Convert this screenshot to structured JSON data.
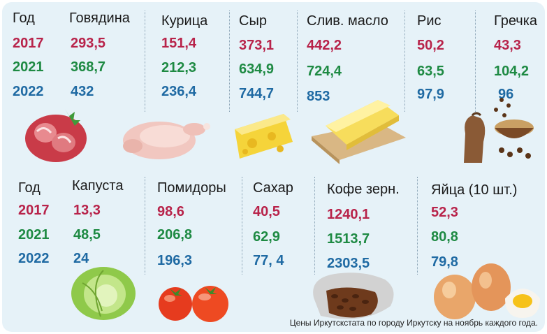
{
  "top": {
    "year_header": "Год",
    "years": [
      "2017",
      "2021",
      "2022"
    ],
    "products": [
      {
        "name": "Говядина",
        "values": [
          "293,5",
          "368,7",
          "432"
        ],
        "icon": "beef-icon"
      },
      {
        "name": "Курица",
        "values": [
          "151,4",
          "212,3",
          "236,4"
        ],
        "icon": "chicken-icon"
      },
      {
        "name": "Сыр",
        "values": [
          "373,1",
          "634,9",
          "744,7"
        ],
        "icon": "cheese-icon"
      },
      {
        "name": "Слив. масло",
        "values": [
          "442,2",
          "724,4",
          "853"
        ],
        "icon": "butter-icon"
      },
      {
        "name": "Рис",
        "values": [
          "50,2",
          "63,5",
          "97,9"
        ],
        "icon": "rice-icon"
      },
      {
        "name": "Гречка",
        "values": [
          "43,3",
          "104,2",
          "96"
        ],
        "icon": "buckwheat-icon"
      }
    ]
  },
  "bottom": {
    "year_header": "Год",
    "years": [
      "2017",
      "2021",
      "2022"
    ],
    "products": [
      {
        "name": "Капуста",
        "values": [
          "13,3",
          "48,5",
          "24"
        ],
        "icon": "cabbage-icon"
      },
      {
        "name": "Помидоры",
        "values": [
          "98,6",
          "206,8",
          "196,3"
        ],
        "icon": "tomato-icon"
      },
      {
        "name": "Сахар",
        "values": [
          "40,5",
          "62,9",
          "77, 4"
        ],
        "icon": "sugar-icon"
      },
      {
        "name": "Кофе зерн.",
        "values": [
          "1240,1",
          "1513,7",
          "2303,5"
        ],
        "icon": "coffee-beans-icon"
      },
      {
        "name": "Яйца (10 шт.)",
        "values": [
          "52,3",
          "80,8",
          "79,8"
        ],
        "icon": "eggs-icon"
      }
    ]
  },
  "colors": {
    "y2017": "#b8234a",
    "y2021": "#1e8a43",
    "y2022": "#1f6aa3",
    "background": "#e6f2f8"
  },
  "note": "Цены Иркутскстата по городу Иркутску на ноябрь каждого года."
}
